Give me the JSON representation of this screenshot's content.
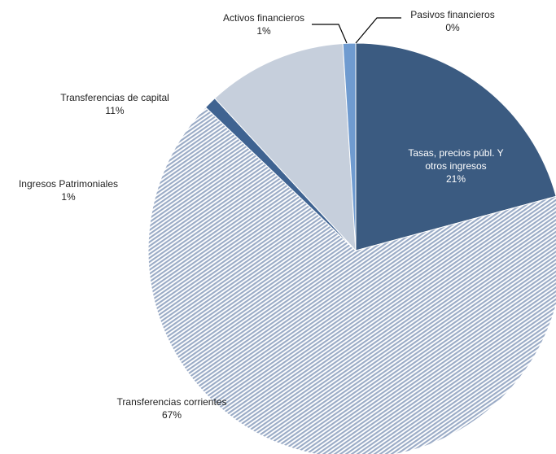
{
  "chart_data": {
    "type": "pie",
    "categories": [
      "Tasas, precios públ. Y otros ingresos",
      "Transferencias corrientes",
      "Ingresos Patrimoniales",
      "Transferencias de capital",
      "Activos financieros",
      "Pasivos financieros"
    ],
    "values": [
      21,
      67,
      1,
      11,
      1,
      0
    ],
    "value_labels": [
      "21%",
      "67%",
      "1%",
      "11%",
      "1%",
      "0%"
    ],
    "colors": [
      "#3b5b81",
      "#9aabc6",
      "#3f6391",
      "#c6cfdc",
      "#6f9bd0",
      "#b9c7d9"
    ]
  }
}
